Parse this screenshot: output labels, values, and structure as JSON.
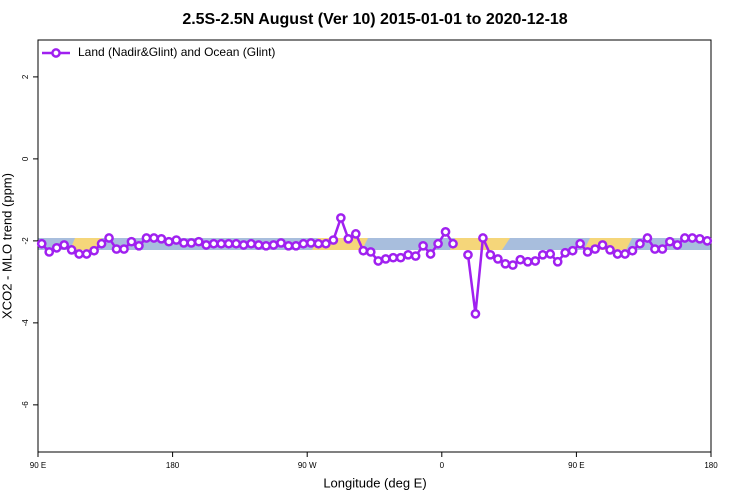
{
  "chart_data": {
    "type": "line",
    "title": "2.5S-2.5N August (Ver 10)   2015-01-01 to 2020-12-18",
    "xlabel": "Longitude (deg E)",
    "ylabel": "XCO2 - MLO trend (ppm)",
    "xlim": [
      90,
      540
    ],
    "xticks": [
      {
        "value": 90,
        "label": "90 E"
      },
      180,
      {
        "value": 270,
        "label": "90 W"
      },
      {
        "value": 360,
        "label": "0"
      },
      {
        "value": 450,
        "label": "90 E"
      },
      {
        "value": 540,
        "label": "180"
      }
    ],
    "ylim": [
      -7.15,
      2.9
    ],
    "yticks": [
      2,
      0,
      -2,
      -4,
      -6
    ],
    "legend": "top-left",
    "x": [
      92.5,
      97.5,
      102.5,
      107.5,
      112.5,
      117.5,
      122.5,
      127.5,
      132.5,
      137.5,
      142.5,
      147.5,
      152.5,
      157.5,
      162.5,
      167.5,
      172.5,
      177.5,
      182.5,
      187.5,
      192.5,
      197.5,
      202.5,
      207.5,
      212.5,
      217.5,
      222.5,
      227.5,
      232.5,
      237.5,
      242.5,
      247.5,
      252.5,
      257.5,
      262.5,
      267.5,
      272.5,
      277.5,
      282.5,
      287.5,
      292.5,
      297.5,
      302.5,
      307.5,
      312.5,
      317.5,
      322.5,
      327.5,
      332.5,
      337.5,
      342.5,
      347.5,
      352.5,
      357.5,
      362.5,
      367.5,
      372.5,
      377.5,
      382.5,
      387.5,
      392.5,
      397.5,
      402.5,
      407.5,
      412.5,
      417.5,
      422.5,
      427.5,
      432.5,
      437.5,
      442.5,
      447.5,
      452.5,
      457.5,
      462.5,
      467.5,
      472.5,
      477.5,
      482.5,
      487.5,
      492.5,
      497.5,
      502.5,
      507.5,
      512.5,
      517.5,
      522.5,
      527.5,
      532.5,
      537.5
    ],
    "series": [
      {
        "name": "Land (Nadir&Glint) and Ocean (Glint)",
        "color": "#a020f0",
        "values": [
          -2.07,
          -2.27,
          -2.17,
          -2.1,
          -2.22,
          -2.32,
          -2.32,
          -2.24,
          -2.07,
          -1.93,
          -2.2,
          -2.2,
          -2.02,
          -2.12,
          -1.93,
          -1.93,
          -1.95,
          -2.02,
          -1.98,
          -2.05,
          -2.05,
          -2.02,
          -2.1,
          -2.07,
          -2.07,
          -2.07,
          -2.07,
          -2.1,
          -2.07,
          -2.1,
          -2.12,
          -2.1,
          -2.05,
          -2.12,
          -2.12,
          -2.07,
          -2.05,
          -2.07,
          -2.07,
          -1.98,
          -1.44,
          -1.95,
          -1.83,
          -2.24,
          -2.27,
          -2.49,
          -2.44,
          -2.41,
          -2.41,
          -2.34,
          -2.37,
          -2.12,
          -2.32,
          -2.07,
          -1.78,
          -2.07,
          null,
          -2.34,
          -3.78,
          -1.93,
          -2.34,
          -2.44,
          -2.56,
          -2.59,
          -2.46,
          -2.51,
          -2.49,
          -2.34,
          -2.32,
          -2.51,
          -2.29,
          -2.24,
          -2.07,
          -2.27,
          -2.2,
          -2.1,
          -2.22,
          -2.32,
          -2.32,
          -2.24,
          -2.07,
          -1.93,
          -2.2,
          -2.2,
          -2.02,
          -2.1,
          -1.93,
          -1.93,
          -1.95,
          -2.0
        ]
      }
    ]
  }
}
